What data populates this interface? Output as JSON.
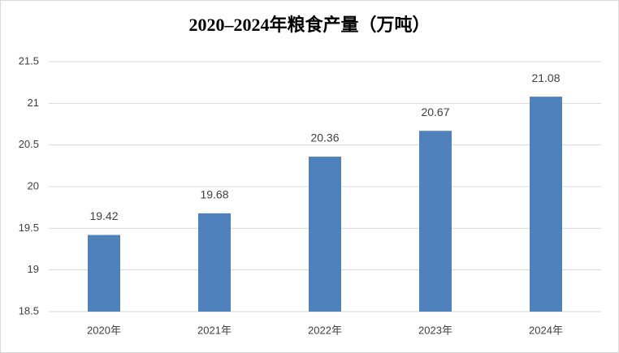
{
  "chart_data": {
    "type": "bar",
    "title": "2020–2024年粮食产量（万吨）",
    "categories": [
      "2020年",
      "2021年",
      "2022年",
      "2023年",
      "2024年"
    ],
    "values": [
      19.42,
      19.68,
      20.36,
      20.67,
      21.08
    ],
    "color": "#4f81bd",
    "ylim": [
      18.5,
      21.5
    ],
    "yticks": [
      18.5,
      19,
      19.5,
      20,
      20.5,
      21,
      21.5
    ],
    "grid": true
  }
}
